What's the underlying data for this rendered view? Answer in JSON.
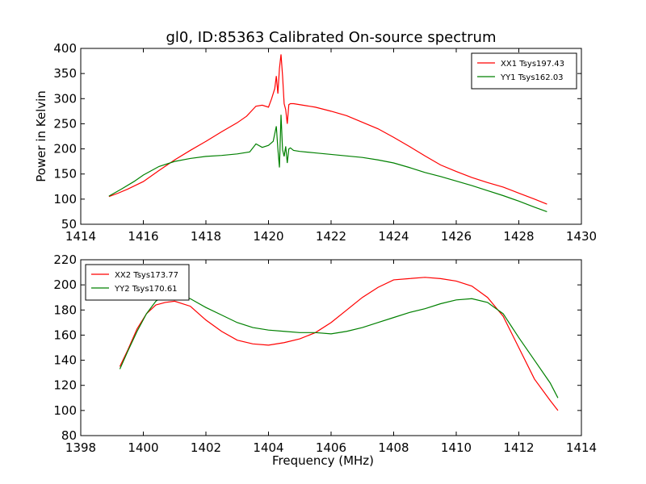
{
  "title": "gl0, ID:85363 Calibrated On-source spectrum",
  "chart_data": [
    {
      "type": "line",
      "title": "gl0, ID:85363 Calibrated On-source spectrum",
      "xlabel": "",
      "ylabel": "Power in Kelvin",
      "xlim": [
        1414,
        1430
      ],
      "ylim": [
        50,
        400
      ],
      "xticks": [
        1414,
        1416,
        1418,
        1420,
        1422,
        1424,
        1426,
        1428,
        1430
      ],
      "yticks": [
        50,
        100,
        150,
        200,
        250,
        300,
        350,
        400
      ],
      "legend_position": "top-right",
      "grid": false,
      "series": [
        {
          "name": "XX1 Tsys197.43",
          "color": "#ff0000",
          "x": [
            1414.9,
            1415.2,
            1415.5,
            1415.8,
            1416.0,
            1416.5,
            1417.0,
            1417.5,
            1418.0,
            1418.5,
            1419.0,
            1419.3,
            1419.6,
            1419.8,
            1420.0,
            1420.1,
            1420.2,
            1420.25,
            1420.3,
            1420.35,
            1420.4,
            1420.45,
            1420.5,
            1420.55,
            1420.6,
            1420.65,
            1420.7,
            1420.8,
            1421.0,
            1421.5,
            1422.0,
            1422.5,
            1423.0,
            1423.5,
            1424.0,
            1424.5,
            1425.0,
            1425.5,
            1426.0,
            1426.5,
            1427.0,
            1427.5,
            1428.0,
            1428.5,
            1428.9
          ],
          "y": [
            105,
            112,
            120,
            129,
            135,
            157,
            178,
            197,
            215,
            234,
            252,
            265,
            285,
            287,
            283,
            300,
            320,
            345,
            310,
            360,
            388,
            345,
            290,
            278,
            250,
            288,
            290,
            290,
            288,
            283,
            275,
            266,
            253,
            240,
            223,
            205,
            186,
            168,
            155,
            143,
            133,
            124,
            112,
            100,
            90
          ]
        },
        {
          "name": "YY1 Tsys162.03",
          "color": "#008000",
          "x": [
            1414.9,
            1415.3,
            1415.7,
            1416.0,
            1416.5,
            1417.0,
            1417.5,
            1418.0,
            1418.5,
            1419.0,
            1419.4,
            1419.6,
            1419.8,
            1420.0,
            1420.15,
            1420.25,
            1420.3,
            1420.35,
            1420.4,
            1420.45,
            1420.5,
            1420.55,
            1420.6,
            1420.65,
            1420.7,
            1420.8,
            1421.0,
            1421.5,
            1422.0,
            1422.5,
            1423.0,
            1423.5,
            1424.0,
            1424.5,
            1425.0,
            1425.5,
            1426.0,
            1426.5,
            1427.0,
            1427.5,
            1428.0,
            1428.5,
            1428.9
          ],
          "y": [
            106,
            120,
            135,
            148,
            165,
            175,
            181,
            185,
            187,
            190,
            194,
            210,
            203,
            207,
            215,
            245,
            200,
            163,
            268,
            198,
            185,
            205,
            172,
            200,
            202,
            197,
            195,
            192,
            189,
            186,
            183,
            178,
            172,
            163,
            153,
            145,
            136,
            127,
            117,
            107,
            96,
            84,
            75
          ]
        }
      ]
    },
    {
      "type": "line",
      "title": "",
      "xlabel": "Frequency (MHz)",
      "ylabel": "",
      "xlim": [
        1398,
        1414
      ],
      "ylim": [
        80,
        220
      ],
      "xticks": [
        1398,
        1400,
        1402,
        1404,
        1406,
        1408,
        1410,
        1412,
        1414
      ],
      "yticks": [
        80,
        100,
        120,
        140,
        160,
        180,
        200,
        220
      ],
      "legend_position": "top-left",
      "grid": false,
      "series": [
        {
          "name": "XX2 Tsys173.77",
          "color": "#ff0000",
          "x": [
            1399.25,
            1399.5,
            1399.8,
            1400.1,
            1400.4,
            1400.7,
            1401.0,
            1401.5,
            1402.0,
            1402.5,
            1403.0,
            1403.5,
            1404.0,
            1404.5,
            1405.0,
            1405.5,
            1406.0,
            1406.5,
            1407.0,
            1407.5,
            1408.0,
            1408.5,
            1409.0,
            1409.5,
            1410.0,
            1410.5,
            1411.0,
            1411.5,
            1412.0,
            1412.5,
            1413.0,
            1413.25
          ],
          "y": [
            135,
            148,
            165,
            177,
            184,
            186,
            187,
            183,
            172,
            163,
            156,
            153,
            152,
            154,
            157,
            162,
            170,
            180,
            190,
            198,
            204,
            205,
            206,
            205,
            203,
            199,
            190,
            175,
            150,
            125,
            108,
            100
          ]
        },
        {
          "name": "YY2 Tsys170.61",
          "color": "#008000",
          "x": [
            1399.25,
            1399.5,
            1399.8,
            1400.1,
            1400.4,
            1400.7,
            1401.0,
            1401.5,
            1402.0,
            1402.5,
            1403.0,
            1403.5,
            1404.0,
            1404.5,
            1405.0,
            1405.5,
            1406.0,
            1406.5,
            1407.0,
            1407.5,
            1408.0,
            1408.5,
            1409.0,
            1409.5,
            1410.0,
            1410.5,
            1411.0,
            1411.5,
            1412.0,
            1412.5,
            1413.0,
            1413.25
          ],
          "y": [
            133,
            147,
            163,
            177,
            187,
            192,
            193,
            189,
            182,
            176,
            170,
            166,
            164,
            163,
            162,
            162,
            161,
            163,
            166,
            170,
            174,
            178,
            181,
            185,
            188,
            189,
            186,
            177,
            158,
            140,
            122,
            110
          ]
        }
      ]
    }
  ]
}
